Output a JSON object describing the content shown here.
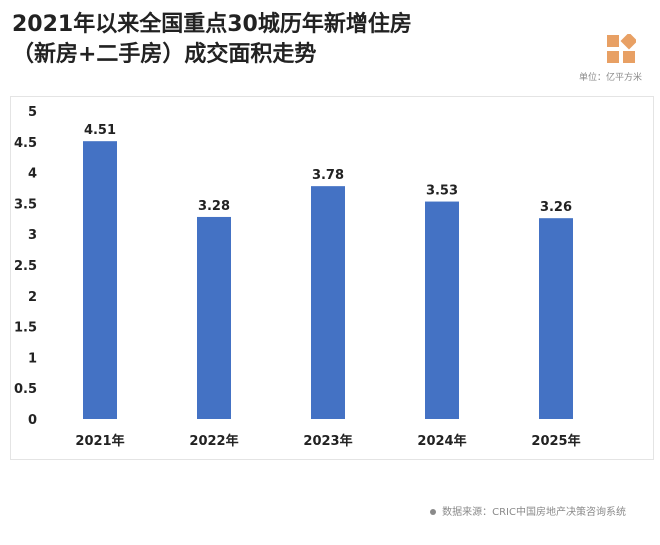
{
  "header": {
    "title_line1": "2021年以来全国重点30城历年新增住房",
    "title_line2": "（新房+二手房）成交面积走势",
    "unit": "单位：亿平方米"
  },
  "footer": {
    "source": "数据来源：CRIC中国房地产决策咨询系统"
  },
  "colors": {
    "bar": "#4472c4",
    "text": "#222222",
    "muted": "#8a8a8a",
    "logo": "#e8a064"
  },
  "chart_data": {
    "type": "bar",
    "categories": [
      "2021年",
      "2022年",
      "2023年",
      "2024年",
      "2025年"
    ],
    "values": [
      4.51,
      3.28,
      3.78,
      3.53,
      3.26
    ],
    "value_labels": [
      "4.51",
      "3.28",
      "3.78",
      "3.53",
      "3.26"
    ],
    "y_ticks": [
      "0",
      "0.5",
      "1",
      "1.5",
      "2",
      "2.5",
      "3",
      "3.5",
      "4",
      "4.5",
      "5"
    ],
    "ylim": [
      0,
      5
    ],
    "grid": false,
    "legend": "none"
  }
}
